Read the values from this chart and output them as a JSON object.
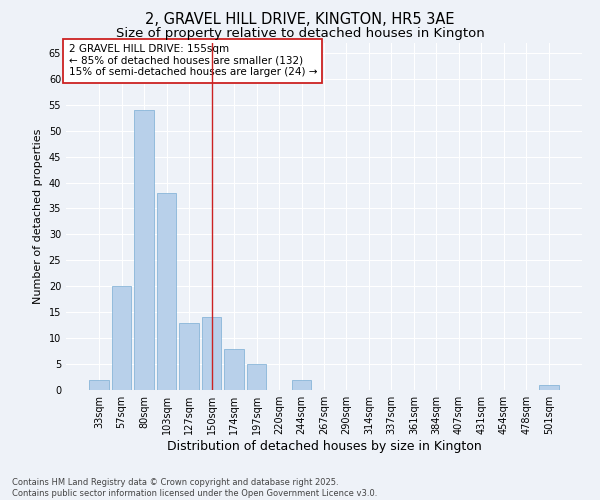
{
  "title": "2, GRAVEL HILL DRIVE, KINGTON, HR5 3AE",
  "subtitle": "Size of property relative to detached houses in Kington",
  "xlabel": "Distribution of detached houses by size in Kington",
  "ylabel": "Number of detached properties",
  "categories": [
    "33sqm",
    "57sqm",
    "80sqm",
    "103sqm",
    "127sqm",
    "150sqm",
    "174sqm",
    "197sqm",
    "220sqm",
    "244sqm",
    "267sqm",
    "290sqm",
    "314sqm",
    "337sqm",
    "361sqm",
    "384sqm",
    "407sqm",
    "431sqm",
    "454sqm",
    "478sqm",
    "501sqm"
  ],
  "values": [
    2,
    20,
    54,
    38,
    13,
    14,
    8,
    5,
    0,
    2,
    0,
    0,
    0,
    0,
    0,
    0,
    0,
    0,
    0,
    0,
    1
  ],
  "bar_color": "#b8d0ea",
  "bar_edge_color": "#7aadd4",
  "vline_x": 5,
  "vline_color": "#cc2222",
  "annotation_text": "2 GRAVEL HILL DRIVE: 155sqm\n← 85% of detached houses are smaller (132)\n15% of semi-detached houses are larger (24) →",
  "annotation_box_color": "#ffffff",
  "annotation_box_edge": "#cc2222",
  "ylim": [
    0,
    67
  ],
  "yticks": [
    0,
    5,
    10,
    15,
    20,
    25,
    30,
    35,
    40,
    45,
    50,
    55,
    60,
    65
  ],
  "footnote": "Contains HM Land Registry data © Crown copyright and database right 2025.\nContains public sector information licensed under the Open Government Licence v3.0.",
  "bg_color": "#eef2f8",
  "grid_color": "#ffffff",
  "title_fontsize": 10.5,
  "subtitle_fontsize": 9.5,
  "xlabel_fontsize": 9,
  "ylabel_fontsize": 8,
  "tick_fontsize": 7,
  "annotation_fontsize": 7.5,
  "footnote_fontsize": 6
}
